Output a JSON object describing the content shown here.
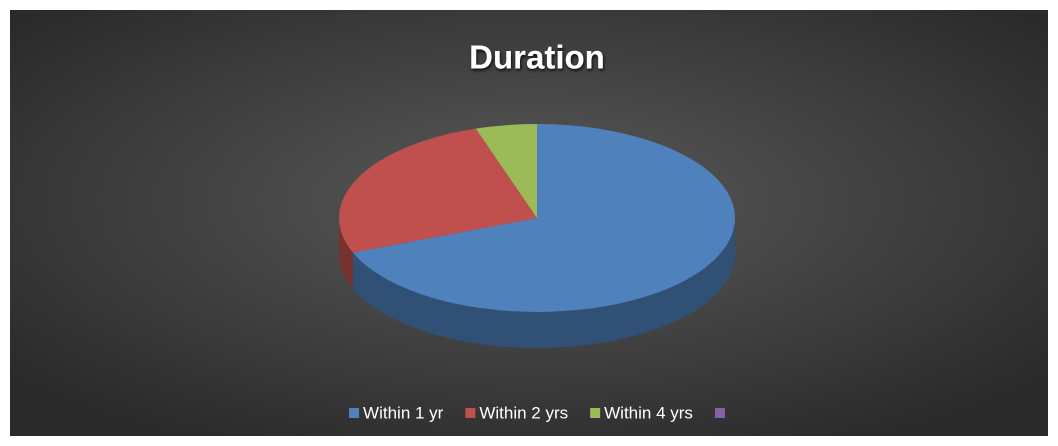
{
  "chart_data": {
    "type": "pie3d",
    "title": "Duration",
    "categories": [
      "Within 1 yr",
      "Within 2 yrs",
      "Within 4 yrs",
      null
    ],
    "values": [
      69,
      26,
      5,
      0
    ],
    "colors": [
      "#4f81bd",
      "#c0504d",
      "#9bbb59",
      "#8064a2"
    ],
    "legend": "bottom"
  }
}
